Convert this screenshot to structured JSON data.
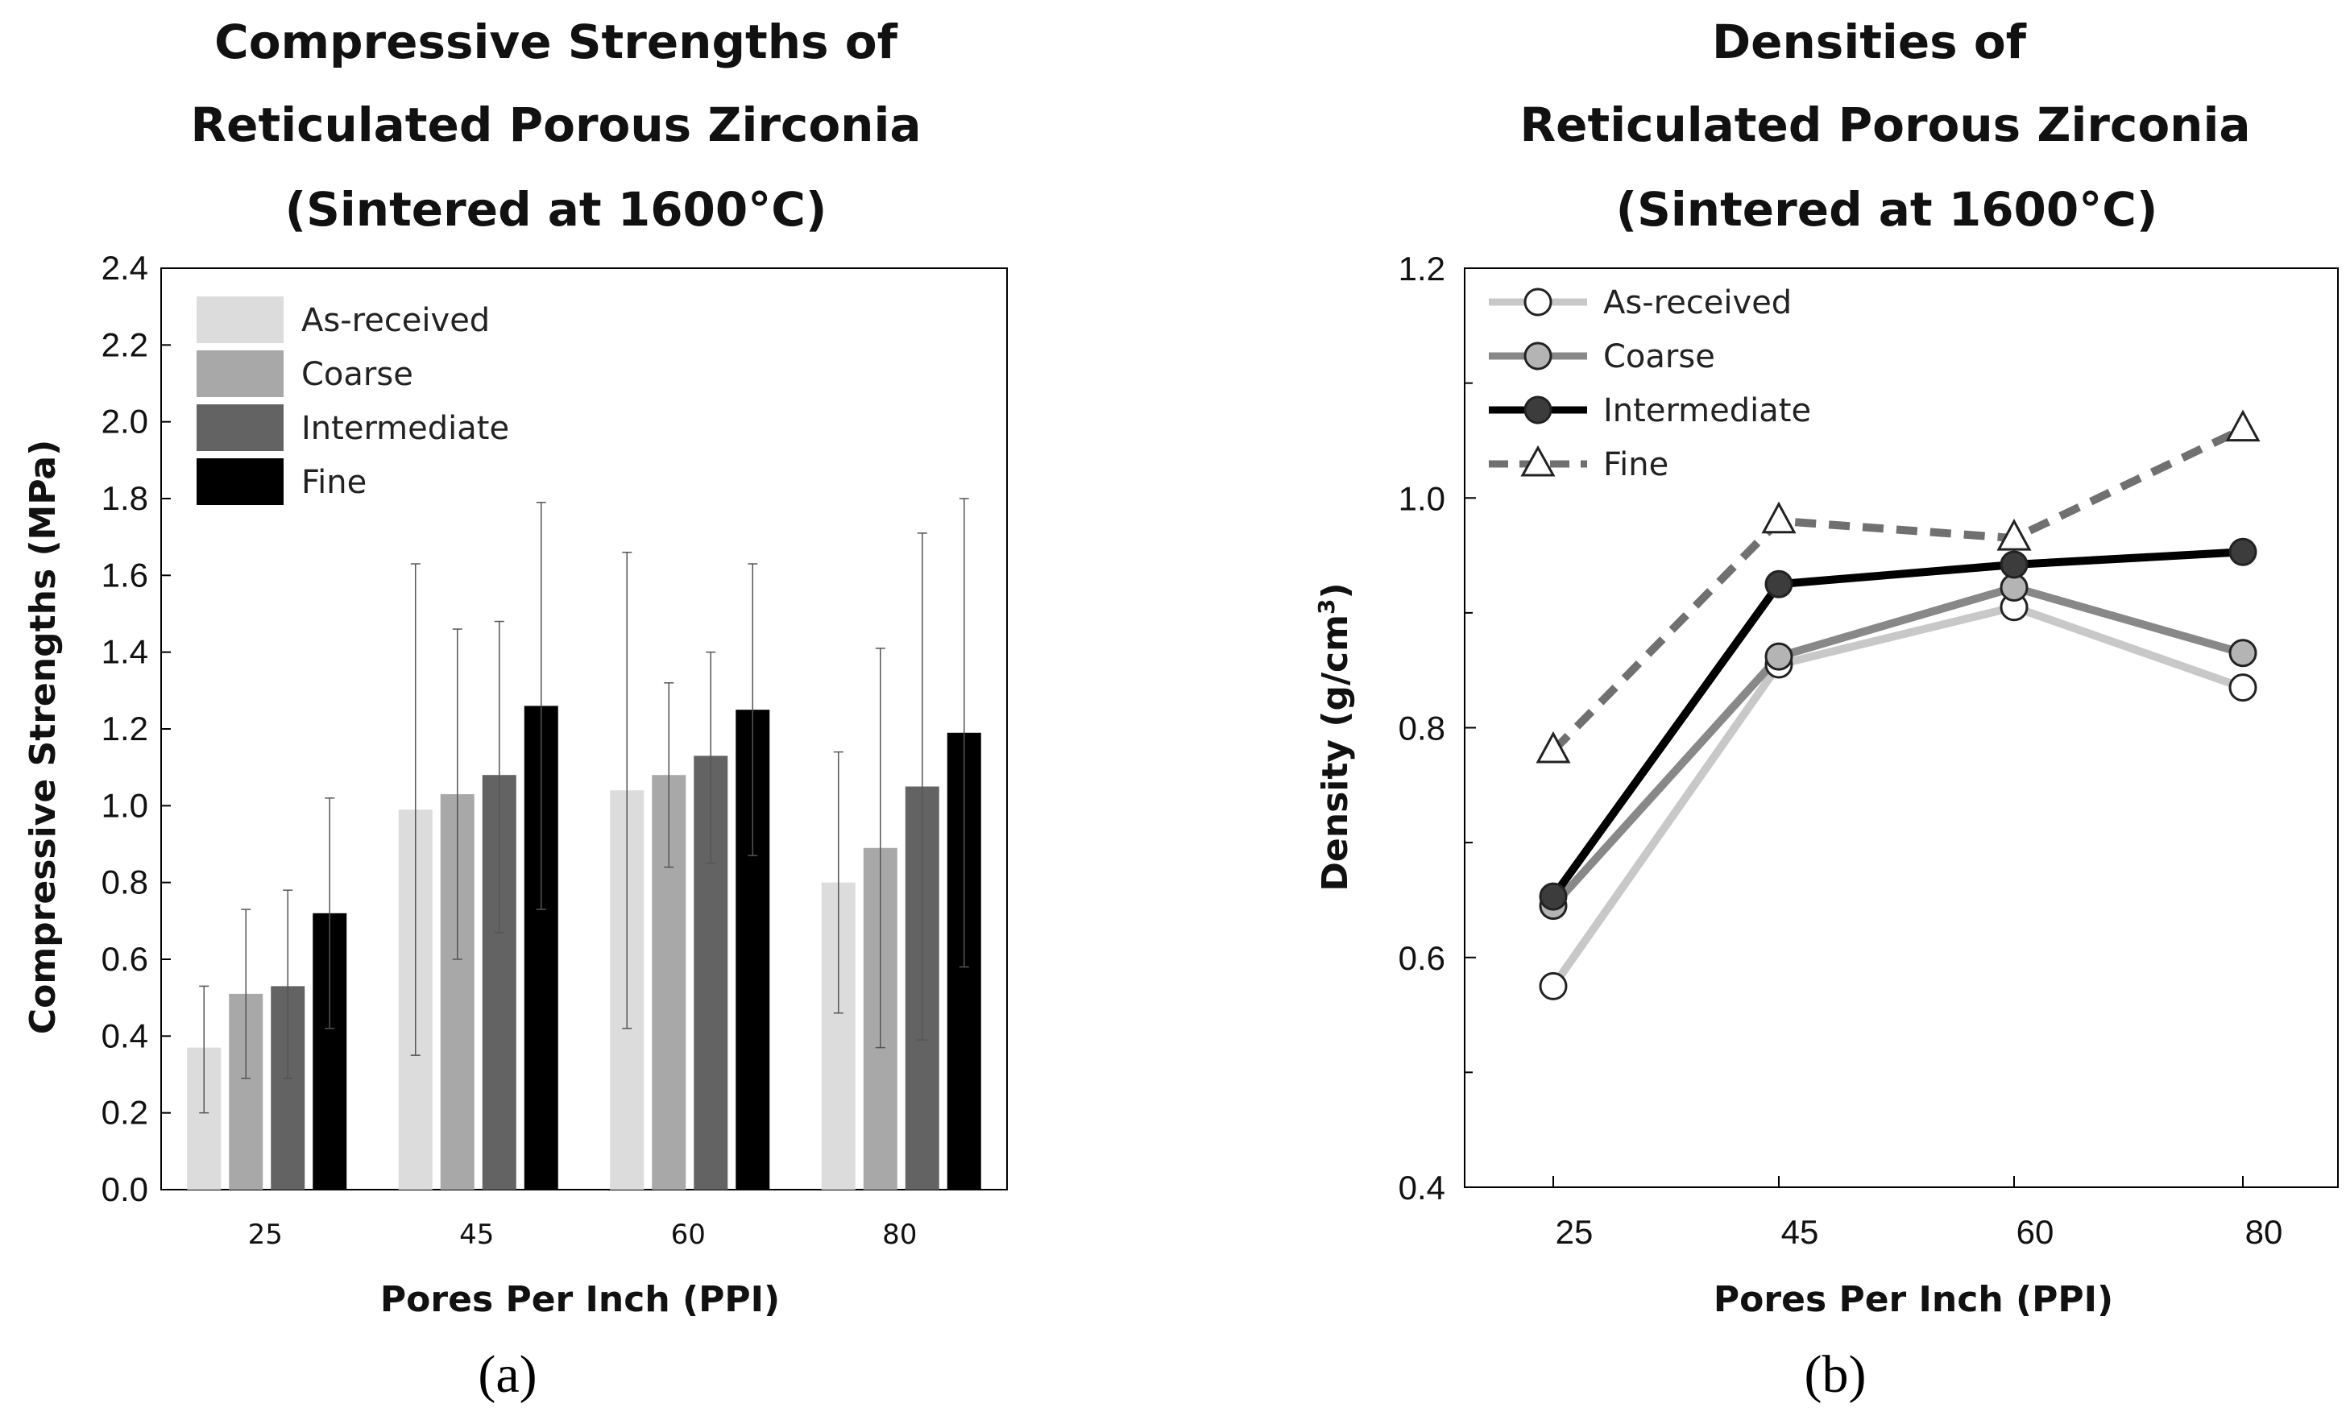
{
  "chart_data": [
    {
      "id": "a",
      "type": "bar",
      "panel_label": "(a)",
      "title_lines": [
        "Compressive Strengths of",
        "Reticulated Porous Zirconia",
        "(Sintered at 1600°C)"
      ],
      "xlabel": "Pores Per Inch (PPI)",
      "ylabel": "Compressive Strengths (MPa)",
      "ylim": [
        0,
        2.4
      ],
      "yticks": [
        "0.0",
        "0.2",
        "0.4",
        "0.6",
        "0.8",
        "1.0",
        "1.2",
        "1.4",
        "1.6",
        "1.8",
        "2.0",
        "2.2",
        "2.4"
      ],
      "categories": [
        "25",
        "45",
        "60",
        "80"
      ],
      "legend_position": "top-left",
      "series": [
        {
          "name": "As-received",
          "color": "#dcdcdc",
          "values": [
            0.37,
            0.99,
            1.04,
            0.8
          ],
          "err_low": [
            0.2,
            0.35,
            0.42,
            0.46
          ],
          "err_high": [
            0.53,
            1.63,
            1.66,
            1.14
          ]
        },
        {
          "name": "Coarse",
          "color": "#a8a8a8",
          "values": [
            0.51,
            1.03,
            1.08,
            0.89
          ],
          "err_low": [
            0.29,
            0.6,
            0.84,
            0.37
          ],
          "err_high": [
            0.73,
            1.46,
            1.32,
            1.41
          ]
        },
        {
          "name": "Intermediate",
          "color": "#636363",
          "values": [
            0.53,
            1.08,
            1.13,
            1.05
          ],
          "err_low": [
            0.29,
            0.67,
            0.85,
            0.39
          ],
          "err_high": [
            0.78,
            1.48,
            1.4,
            1.71
          ]
        },
        {
          "name": "Fine",
          "color": "#000000",
          "values": [
            0.72,
            1.26,
            1.25,
            1.19
          ],
          "err_low": [
            0.42,
            0.73,
            0.87,
            0.58
          ],
          "err_high": [
            1.02,
            1.79,
            1.63,
            1.8
          ]
        }
      ]
    },
    {
      "id": "b",
      "type": "line",
      "panel_label": "(b)",
      "title_lines": [
        "Densities of",
        "Reticulated Porous Zirconia",
        "(Sintered at 1600°C)"
      ],
      "xlabel": "Pores Per Inch (PPI)",
      "ylabel_main": "Density (g/cm",
      "ylabel_sup": "3",
      "ylabel_end": ")",
      "ylim": [
        0.4,
        1.2
      ],
      "yticks": [
        "0.4",
        "0.6",
        "0.8",
        "1.0",
        "1.2"
      ],
      "categories": [
        "25",
        "45",
        "60",
        "80"
      ],
      "legend_position": "top-left",
      "series": [
        {
          "name": "As-received",
          "line_color": "#c8c8c8",
          "marker": "circle",
          "marker_fill": "#ffffff",
          "dash": false,
          "values": [
            0.575,
            0.855,
            0.905,
            0.835
          ]
        },
        {
          "name": "Coarse",
          "line_color": "#888888",
          "marker": "circle",
          "marker_fill": "#b4b4b4",
          "dash": false,
          "values": [
            0.645,
            0.862,
            0.922,
            0.865
          ]
        },
        {
          "name": "Intermediate",
          "line_color": "#000000",
          "marker": "circle",
          "marker_fill": "#3c3c3c",
          "dash": false,
          "values": [
            0.653,
            0.925,
            0.942,
            0.953
          ]
        },
        {
          "name": "Fine",
          "line_color": "#707070",
          "marker": "triangle",
          "marker_fill": "#ffffff",
          "dash": true,
          "values": [
            0.78,
            0.98,
            0.965,
            1.06
          ]
        }
      ]
    }
  ]
}
